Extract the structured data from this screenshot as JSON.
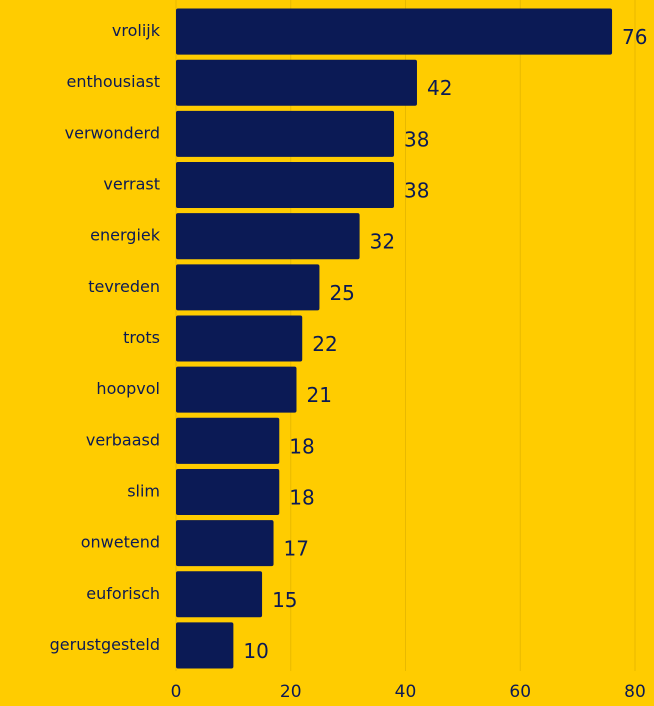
{
  "chart_data": {
    "type": "bar",
    "orientation": "horizontal",
    "categories": [
      "vrolijk",
      "enthousiast",
      "verwonderd",
      "verrast",
      "energiek",
      "tevreden",
      "trots",
      "hoopvol",
      "verbaasd",
      "slim",
      "onwetend",
      "euforisch",
      "gerustgesteld"
    ],
    "values": [
      76,
      42,
      38,
      38,
      32,
      25,
      22,
      21,
      18,
      18,
      17,
      15,
      10
    ],
    "color": "#0b1a55",
    "xlim": [
      0,
      80
    ],
    "xticks": [
      0,
      20,
      40,
      60,
      80
    ],
    "grid": true
  }
}
